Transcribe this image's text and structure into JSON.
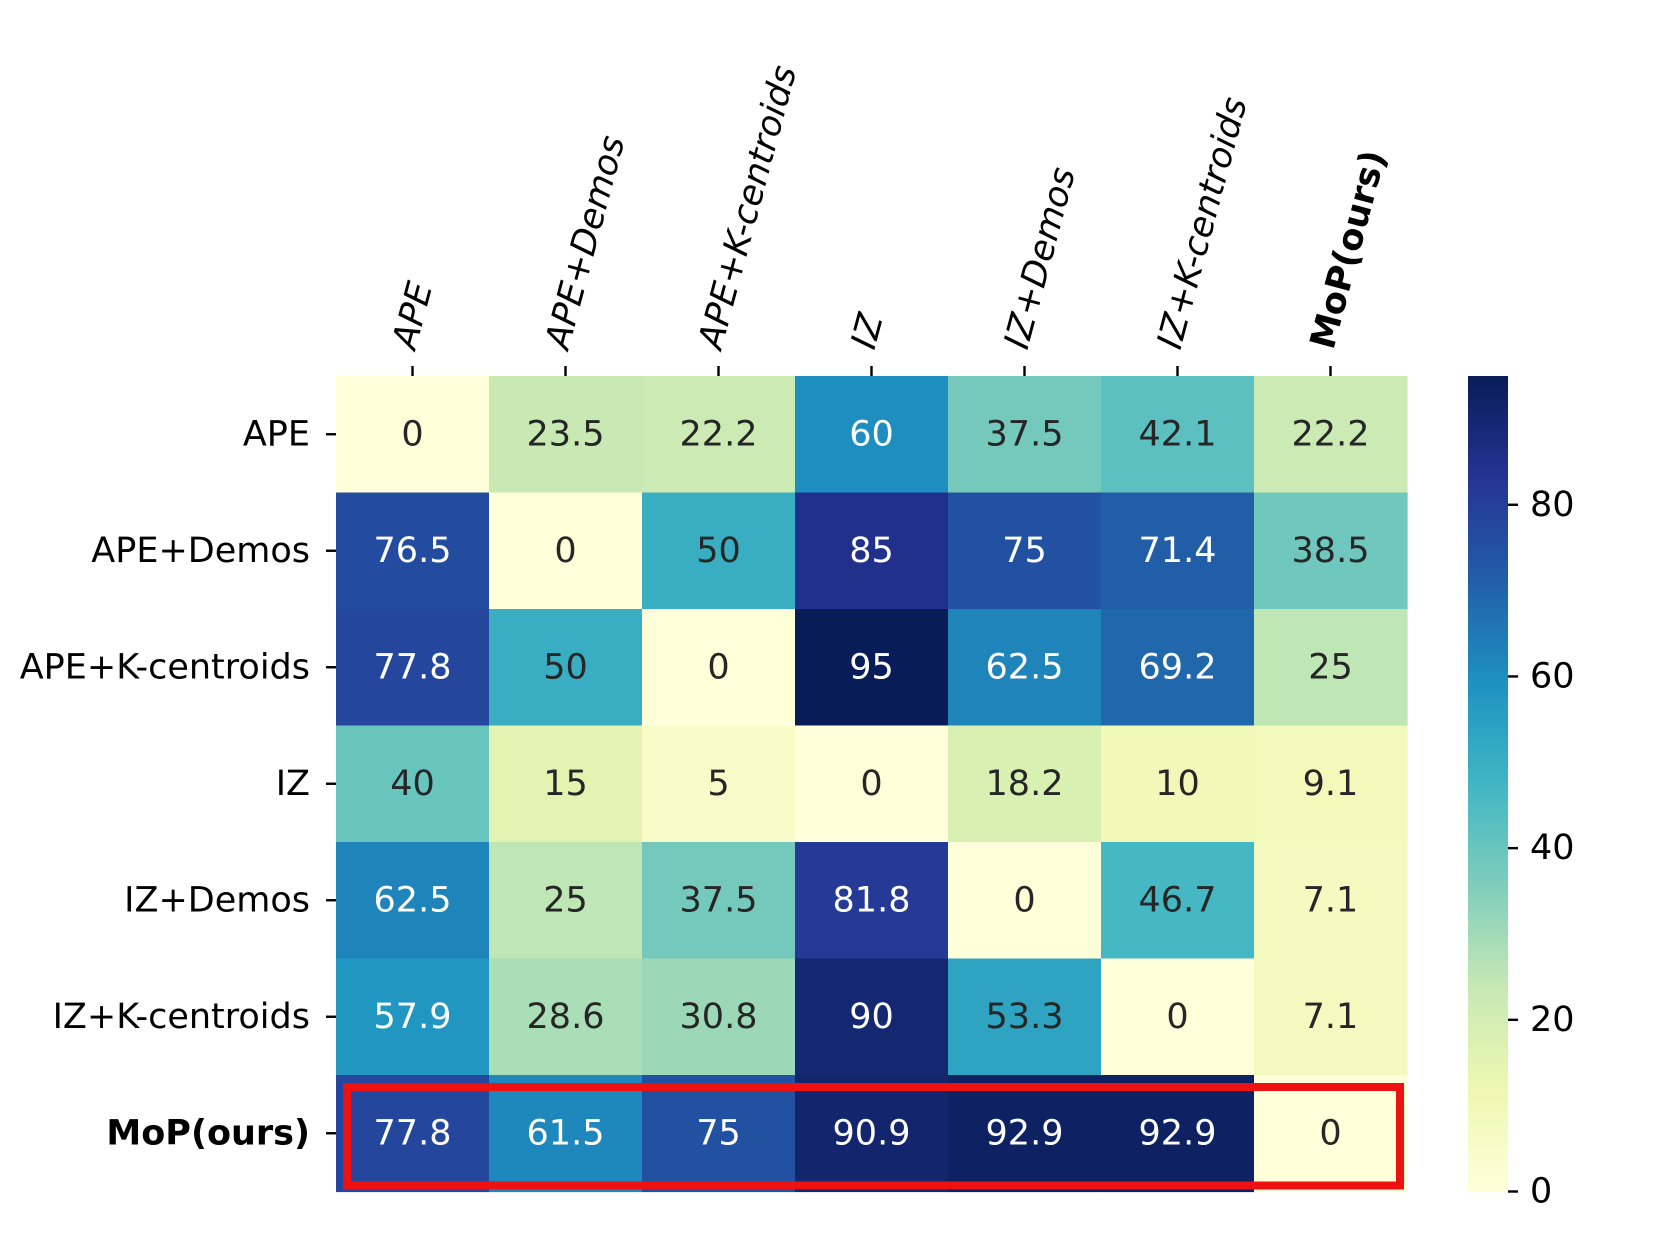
{
  "chart_data": {
    "type": "heatmap",
    "rows": [
      "APE",
      "APE+Demos",
      "APE+K-centroids",
      "IZ",
      "IZ+Demos",
      "IZ+K-centroids",
      "MoP(ours)"
    ],
    "columns": [
      "APE",
      "APE+Demos",
      "APE+K-centroids",
      "IZ",
      "IZ+Demos",
      "IZ+K-centroids",
      "MoP(ours)"
    ],
    "values": [
      [
        0,
        23.5,
        22.2,
        60,
        37.5,
        42.1,
        22.2
      ],
      [
        76.5,
        0,
        50,
        85,
        75,
        71.4,
        38.5
      ],
      [
        77.8,
        50,
        0,
        95,
        62.5,
        69.2,
        25
      ],
      [
        40,
        15,
        5,
        0,
        18.2,
        10,
        9.1
      ],
      [
        62.5,
        25,
        37.5,
        81.8,
        0,
        46.7,
        7.1
      ],
      [
        57.9,
        28.6,
        30.8,
        90,
        53.3,
        0,
        7.1
      ],
      [
        77.8,
        61.5,
        75,
        90.9,
        92.9,
        92.9,
        0
      ]
    ],
    "cell_labels": [
      [
        "0",
        "23.5",
        "22.2",
        "60",
        "37.5",
        "42.1",
        "22.2"
      ],
      [
        "76.5",
        "0",
        "50",
        "85",
        "75",
        "71.4",
        "38.5"
      ],
      [
        "77.8",
        "50",
        "0",
        "95",
        "62.5",
        "69.2",
        "25"
      ],
      [
        "40",
        "15",
        "5",
        "0",
        "18.2",
        "10",
        "9.1"
      ],
      [
        "62.5",
        "25",
        "37.5",
        "81.8",
        "0",
        "46.7",
        "7.1"
      ],
      [
        "57.9",
        "28.6",
        "30.8",
        "90",
        "53.3",
        "0",
        "7.1"
      ],
      [
        "77.8",
        "61.5",
        "75",
        "90.9",
        "92.9",
        "92.9",
        "0"
      ]
    ],
    "bold_labels": [
      "MoP(ours)"
    ],
    "highlighted_row": "MoP(ours)",
    "highlight_color": "#ee1111",
    "colormap": "YlGnBu",
    "colormap_stops": [
      "#ffffd9",
      "#edf8b1",
      "#c7e9b4",
      "#7fcdbb",
      "#41b6c4",
      "#1d91c0",
      "#225ea8",
      "#253494",
      "#081d58"
    ],
    "vmin": 0,
    "vmax": 95,
    "colorbar": {
      "ticks": [
        0,
        20,
        40,
        60,
        80
      ],
      "tick_labels": [
        "0",
        "20",
        "40",
        "60",
        "80"
      ]
    },
    "x_tick_position": "top",
    "x_tick_rotation_deg": 75,
    "title": "",
    "xlabel": "",
    "ylabel": ""
  }
}
